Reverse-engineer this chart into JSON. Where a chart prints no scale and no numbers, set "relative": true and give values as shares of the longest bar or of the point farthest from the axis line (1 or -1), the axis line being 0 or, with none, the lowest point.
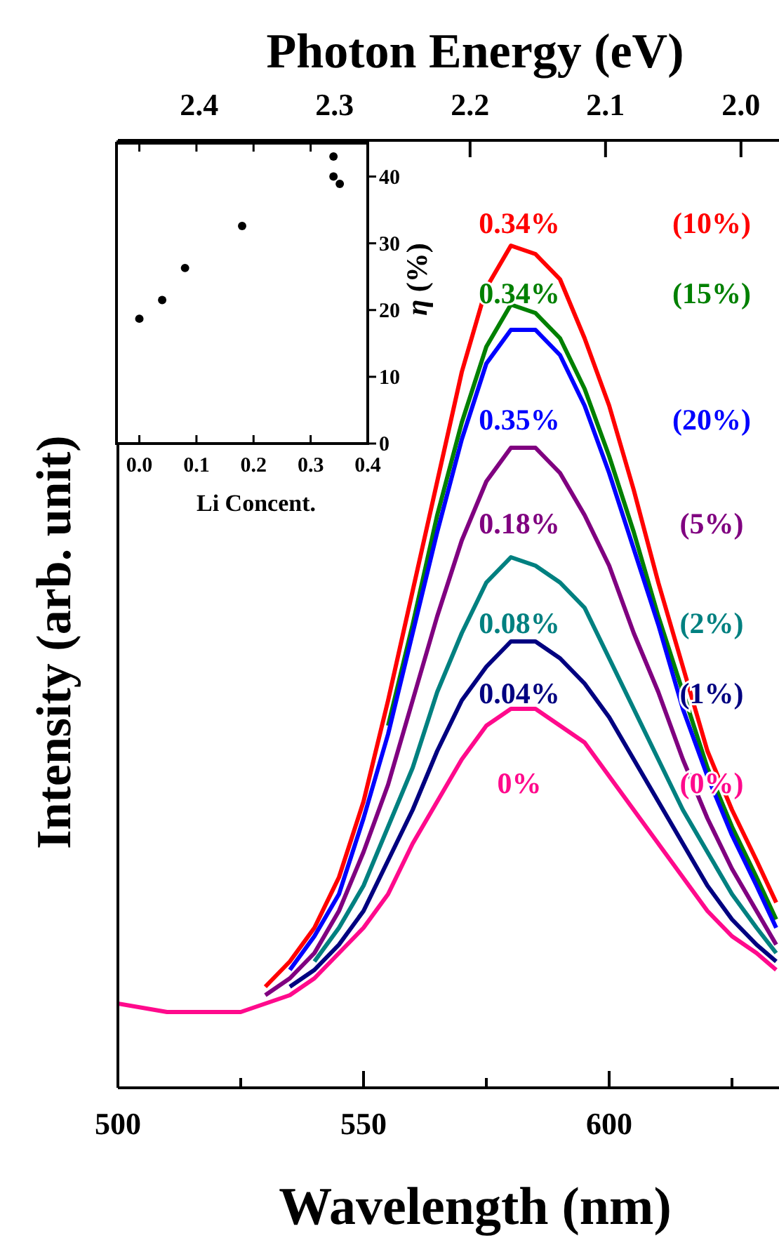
{
  "chart_data": [
    {
      "type": "line",
      "relative": true,
      "xlabel": "Wavelength (nm)",
      "ylabel": "Intensity (arb. unit)",
      "x2label": "Photon Energy (eV)",
      "xlim": [
        500,
        634
      ],
      "xticks": [
        500,
        {
          "value": 525,
          "label": null
        },
        550,
        {
          "value": 575,
          "label": null
        },
        600,
        {
          "value": 625,
          "label": null
        }
      ],
      "x2lim": [
        2.46,
        1.974
      ],
      "x2ticks": [
        2.4,
        2.3,
        2.2,
        2.1,
        {
          "value": 2,
          "label": "2.0"
        }
      ],
      "grid": false,
      "line_style": "solid",
      "x": [
        500,
        510,
        520,
        525,
        530,
        535,
        540,
        545,
        550,
        555,
        560,
        565,
        570,
        575,
        580,
        585,
        590,
        595,
        600,
        605,
        610,
        615,
        620,
        625,
        630,
        634
      ],
      "series": [
        {
          "name": "0.34%",
          "color": "#ff0000",
          "values": [
            null,
            null,
            null,
            null,
            0.12,
            0.15,
            0.19,
            0.25,
            0.34,
            0.46,
            0.59,
            0.72,
            0.85,
            0.95,
            1.0,
            0.99,
            0.96,
            0.89,
            0.81,
            0.71,
            0.6,
            0.5,
            0.4,
            0.33,
            0.27,
            0.22
          ]
        },
        {
          "name": "0.34%",
          "color": "#008000",
          "values": [
            null,
            null,
            null,
            null,
            null,
            null,
            null,
            null,
            null,
            0.43,
            0.55,
            0.68,
            0.79,
            0.88,
            0.93,
            0.92,
            0.89,
            0.83,
            0.75,
            0.66,
            0.56,
            0.47,
            0.38,
            0.31,
            0.25,
            0.2
          ]
        },
        {
          "name": "0.35%",
          "color": "#0000ff",
          "values": [
            null,
            null,
            null,
            null,
            null,
            0.14,
            0.18,
            0.23,
            0.32,
            0.42,
            0.54,
            0.66,
            0.77,
            0.86,
            0.9,
            0.9,
            0.87,
            0.81,
            0.73,
            0.64,
            0.55,
            0.45,
            0.37,
            0.3,
            0.24,
            0.19
          ]
        },
        {
          "name": "0.18%",
          "color": "#800080",
          "values": [
            null,
            null,
            null,
            null,
            0.11,
            0.13,
            0.16,
            0.21,
            0.28,
            0.36,
            0.46,
            0.56,
            0.65,
            0.72,
            0.76,
            0.76,
            0.73,
            0.68,
            0.62,
            0.54,
            0.47,
            0.39,
            0.32,
            0.26,
            0.21,
            0.17
          ]
        },
        {
          "name": "0.08%",
          "color": "#008080",
          "values": [
            null,
            null,
            null,
            null,
            null,
            null,
            0.15,
            0.19,
            0.24,
            0.31,
            0.38,
            0.47,
            0.54,
            0.6,
            0.63,
            0.62,
            0.6,
            0.57,
            0.51,
            0.45,
            0.39,
            0.33,
            0.28,
            0.23,
            0.19,
            0.16
          ]
        },
        {
          "name": "0.04%",
          "color": "#000080",
          "values": [
            null,
            null,
            null,
            null,
            null,
            0.12,
            0.14,
            0.17,
            0.21,
            0.27,
            0.33,
            0.4,
            0.46,
            0.5,
            0.53,
            0.53,
            0.51,
            0.48,
            0.44,
            0.39,
            0.34,
            0.29,
            0.24,
            0.2,
            0.17,
            0.15
          ]
        },
        {
          "name": "0%",
          "color": "#ff0a8c",
          "values": [
            0.1,
            0.09,
            0.09,
            0.09,
            0.1,
            0.11,
            0.13,
            0.16,
            0.19,
            0.23,
            0.29,
            0.34,
            0.39,
            0.43,
            0.45,
            0.45,
            0.43,
            0.41,
            0.37,
            0.33,
            0.29,
            0.25,
            0.21,
            0.18,
            0.16,
            0.14
          ]
        }
      ],
      "annotations": [
        "(10%)",
        "(15%)",
        "(20%)",
        "(5%)",
        "(2%)",
        "(1%)",
        "(0%)"
      ]
    },
    {
      "type": "scatter",
      "xlabel": "Li Concent.",
      "ylabel": "η (%)",
      "marker": "circle",
      "color": "#000000",
      "xlim": [
        -0.04,
        0.4
      ],
      "xticks": [
        {
          "value": 0,
          "label": "0.0"
        },
        0.1,
        0.2,
        0.3,
        0.4
      ],
      "ylim": [
        0,
        45
      ],
      "yticks": [
        0,
        10,
        20,
        30,
        40
      ],
      "x": [
        0,
        0.04,
        0.08,
        0.18,
        0.34,
        0.34,
        0.351
      ],
      "values": [
        18.7,
        21.5,
        26.3,
        32.6,
        43.0,
        40.0,
        38.9
      ]
    }
  ]
}
